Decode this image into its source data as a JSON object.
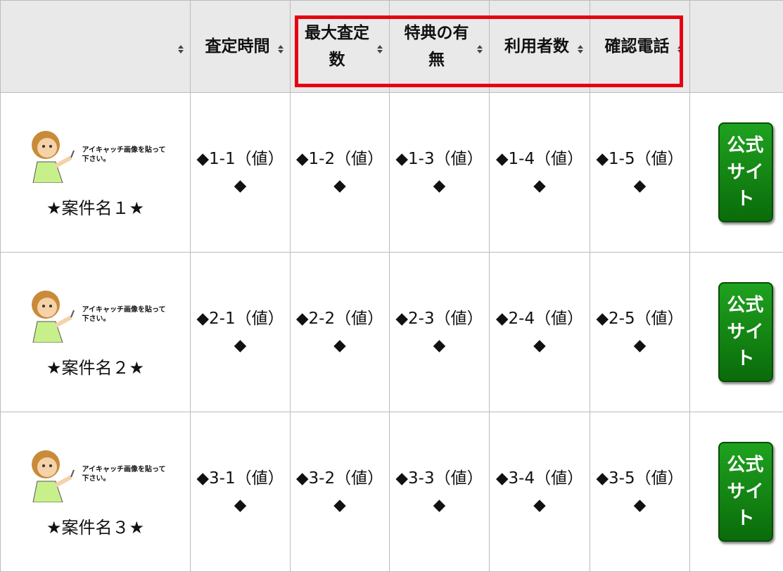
{
  "table": {
    "header": [
      "査定時間",
      "最大査定数",
      "特典の有無",
      "利用者数",
      "確認電話"
    ],
    "rows": [
      {
        "image_text": "アイキャッチ画像を貼って下さい。",
        "name": "★案件名１★",
        "cells": [
          "◆1-1（値）◆",
          "◆1-2（値）◆",
          "◆1-3（値）◆",
          "◆1-4（値）◆",
          "◆1-5（値）◆"
        ],
        "button": "公式サイト"
      },
      {
        "image_text": "アイキャッチ画像を貼って下さい。",
        "name": "★案件名２★",
        "cells": [
          "◆2-1（値）◆",
          "◆2-2（値）◆",
          "◆2-3（値）◆",
          "◆2-4（値）◆",
          "◆2-5（値）◆"
        ],
        "button": "公式サイト"
      },
      {
        "image_text": "アイキャッチ画像を貼って下さい。",
        "name": "★案件名３★",
        "cells": [
          "◆3-1（値）◆",
          "◆3-2（値）◆",
          "◆3-3（値）◆",
          "◆3-4（値）◆",
          "◆3-5（値）◆"
        ],
        "button": "公式サイト"
      }
    ]
  }
}
